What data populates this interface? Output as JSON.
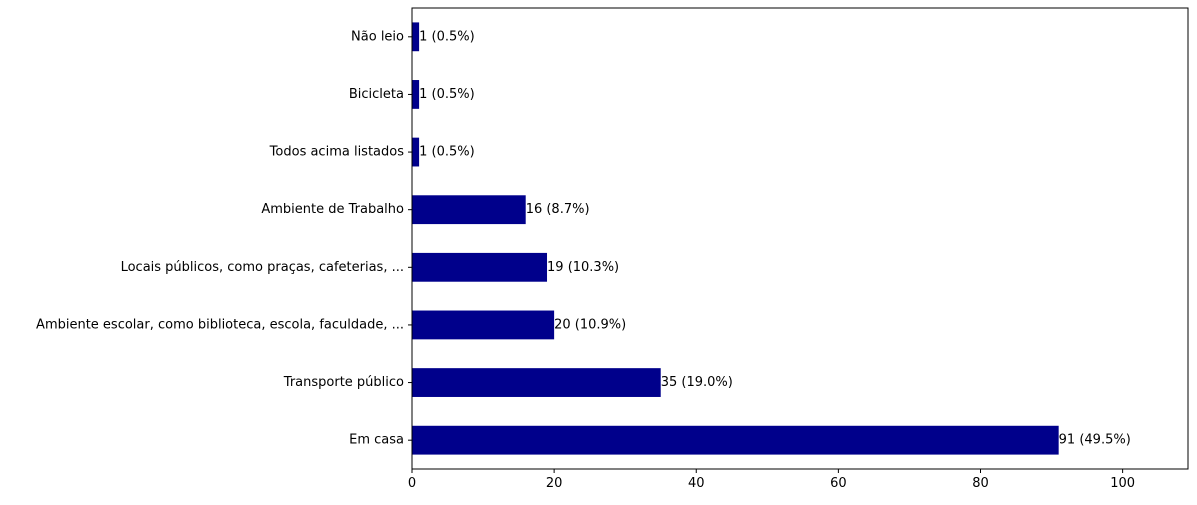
{
  "chart_data": {
    "type": "bar",
    "orientation": "horizontal",
    "categories": [
      "Em casa",
      "Transporte público",
      "Ambiente escolar, como biblioteca, escola, faculdade, ...",
      "Locais públicos, como praças, cafeterias, ...",
      "Ambiente de Trabalho",
      "Todos acima listados",
      "Bicicleta ",
      "Não leio"
    ],
    "values": [
      91,
      35,
      20,
      19,
      16,
      1,
      1,
      1
    ],
    "data_labels": [
      "91 (49.5%)",
      "35 (19.0%)",
      "20 (10.9%)",
      "19 (10.3%)",
      "16 (8.7%)",
      "1 (0.5%)",
      "1 (0.5%)",
      "1 (0.5%)"
    ],
    "title": "",
    "xlabel": "",
    "ylabel": "",
    "xlim": [
      0,
      109.2
    ],
    "xticks": [
      0,
      20,
      40,
      60,
      80,
      100
    ],
    "grid": false,
    "bar_color": "#00008b"
  }
}
